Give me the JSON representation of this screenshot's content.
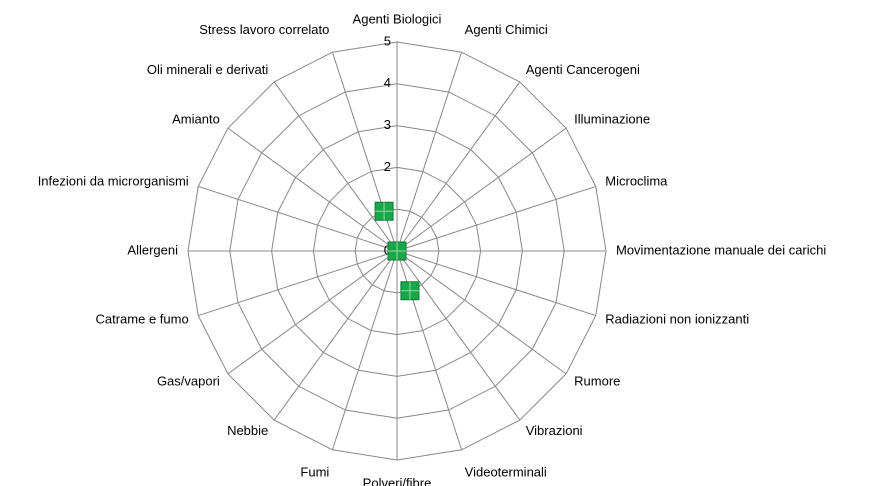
{
  "chart_data": {
    "type": "radar",
    "categories": [
      "Agenti Biologici",
      "Agenti Chimici",
      "Agenti Cancerogeni",
      "Illuminazione",
      "Microclima",
      "Movimentazione manuale dei carichi",
      "Radiazioni non ionizzanti",
      "Rumore",
      "Vibrazioni",
      "Videoterminali",
      "Polveri/fibre",
      "Fumi",
      "Nebbie",
      "Gas/vapori",
      "Catrame e fumo",
      "Allergeni",
      "Infezioni da microrganismi",
      "Amianto",
      "Oli minerali e derivati",
      "Stress lavoro correlato"
    ],
    "values": [
      0,
      0,
      0,
      0,
      0,
      0,
      0,
      0,
      0,
      1,
      0,
      0,
      0,
      0,
      0,
      0,
      0,
      0,
      0,
      1
    ],
    "color": "#1aa64a",
    "ylim": [
      0,
      5
    ],
    "yticks": [
      0,
      1,
      2,
      3,
      4,
      5
    ],
    "grid": true
  }
}
